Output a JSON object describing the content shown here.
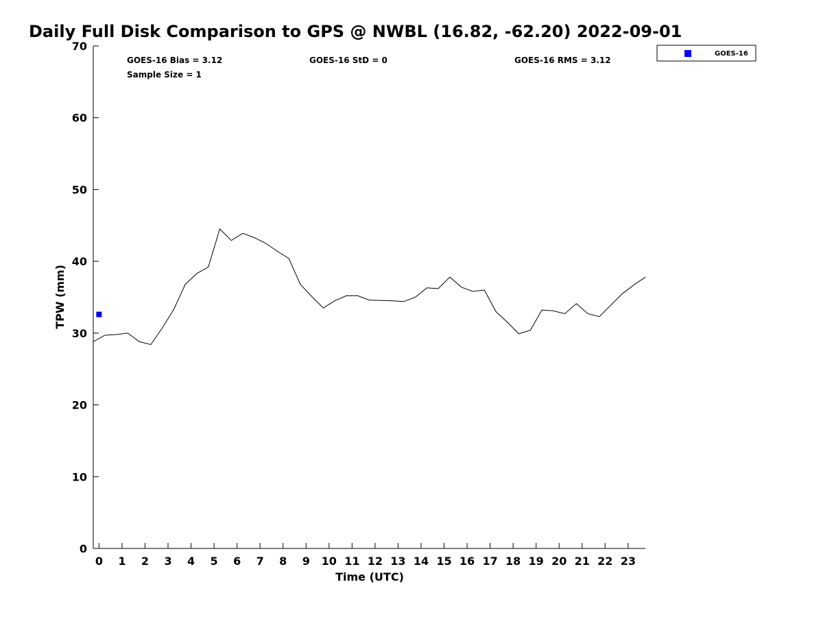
{
  "chart_data": {
    "type": "line",
    "title": "Daily Full Disk Comparison to GPS @ NWBL (16.82, -62.20) 2022-09-01",
    "xlabel": "Time (UTC)",
    "ylabel": "TPW (mm)",
    "xlim": [
      -0.25,
      23.75
    ],
    "ylim": [
      0,
      70
    ],
    "xticks": [
      "0",
      "1",
      "2",
      "3",
      "4",
      "5",
      "6",
      "7",
      "8",
      "9",
      "10",
      "11",
      "12",
      "13",
      "14",
      "15",
      "16",
      "17",
      "18",
      "19",
      "20",
      "21",
      "22",
      "23"
    ],
    "yticks": [
      "0",
      "10",
      "20",
      "30",
      "40",
      "50",
      "60",
      "70"
    ],
    "grid": false,
    "stats": {
      "bias": "GOES-16 Bias = 3.12",
      "std": "GOES-16 StD = 0",
      "rms": "GOES-16 RMS = 3.12",
      "sample_size": "Sample Size = 1"
    },
    "legend": {
      "position": "top-right",
      "label": "GOES-16",
      "color": "#0000ff"
    },
    "series": [
      {
        "style": "line",
        "color": "#000000",
        "x": [
          -0.25,
          0.25,
          0.75,
          1.25,
          1.75,
          2.25,
          2.75,
          3.25,
          3.75,
          4.25,
          4.75,
          5.25,
          5.75,
          6.25,
          6.75,
          7.25,
          7.75,
          8.25,
          8.75,
          9.25,
          9.75,
          10.25,
          10.75,
          11.25,
          11.75,
          12.25,
          12.75,
          13.25,
          13.75,
          14.25,
          14.75,
          15.25,
          15.75,
          16.25,
          16.75,
          17.25,
          17.75,
          18.25,
          18.75,
          19.25,
          19.75,
          20.25,
          20.75,
          21.25,
          21.75,
          22.25,
          22.75,
          23.25,
          23.75
        ],
        "values": [
          28.8,
          29.7,
          29.8,
          30.0,
          28.8,
          28.4,
          30.7,
          33.3,
          36.8,
          38.3,
          39.2,
          44.5,
          42.9,
          43.9,
          43.3,
          42.5,
          41.4,
          40.4,
          36.8,
          35.1,
          33.5,
          34.5,
          35.2,
          35.2,
          34.6,
          34.55,
          34.5,
          34.4,
          35.0,
          36.3,
          36.2,
          37.8,
          36.4,
          35.8,
          36.0,
          33.0,
          31.5,
          29.9,
          30.4,
          33.2,
          33.1,
          32.7,
          34.1,
          32.7,
          32.3,
          33.9,
          35.5,
          36.7,
          37.8
        ]
      },
      {
        "name": "GOES-16",
        "style": "marker",
        "marker": "square",
        "color": "#0000ff",
        "x": [
          0
        ],
        "values": [
          32.6
        ]
      }
    ]
  }
}
